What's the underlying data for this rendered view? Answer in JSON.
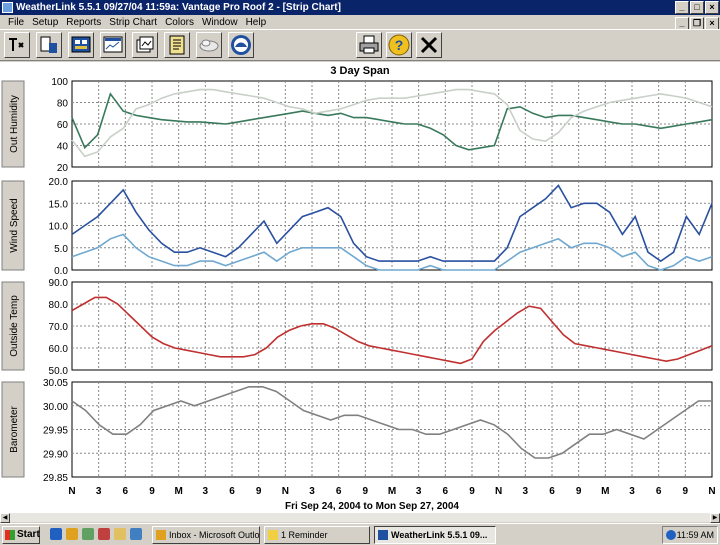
{
  "window": {
    "title": "WeatherLink 5.5.1  09/27/04  11:59a: Vantage Pro Roof 2 - [Strip Chart]"
  },
  "menu": [
    "File",
    "Setup",
    "Reports",
    "Strip Chart",
    "Colors",
    "Window",
    "Help"
  ],
  "toolbar": {
    "left_icons": [
      "station-icon",
      "summary-icon",
      "bulletin-icon",
      "strip-chart-icon",
      "graph-icon",
      "noaa-report-icon",
      "weather-cloud-icon",
      "noaa-logo-icon"
    ],
    "right_icons": [
      "print-icon",
      "help-icon",
      "close-icon"
    ]
  },
  "chart_data": {
    "type": "line",
    "title": "3 Day Span",
    "date_range": "Fri Sep 24, 2004  to  Mon Sep 27, 2004",
    "x_tick_labels": [
      "N",
      "3",
      "6",
      "9",
      "M",
      "3",
      "6",
      "9",
      "N",
      "3",
      "6",
      "9",
      "M",
      "3",
      "6",
      "9",
      "N",
      "3",
      "6",
      "9",
      "M",
      "3",
      "6",
      "9",
      "N"
    ],
    "panels": [
      {
        "ylabel": "Out Humidity",
        "ylim": [
          20,
          100
        ],
        "yticks": [
          "100",
          "80",
          "60",
          "40",
          "20"
        ],
        "series": [
          {
            "color": "#3a7a5c",
            "values": [
              66,
              38,
              50,
              88,
              72,
              68,
              66,
              64,
              63,
              62,
              62,
              61,
              60,
              62,
              64,
              66,
              68,
              70,
              72,
              70,
              68,
              70,
              66,
              66,
              64,
              62,
              60,
              60,
              56,
              50,
              40,
              36,
              38,
              40,
              74,
              76,
              70,
              66,
              68,
              68,
              66,
              64,
              62,
              60,
              60,
              58,
              56,
              58,
              60,
              62,
              64
            ]
          },
          {
            "color": "#c8d0c8",
            "values": [
              45,
              30,
              34,
              48,
              56,
              74,
              78,
              84,
              88,
              90,
              92,
              92,
              90,
              88,
              86,
              84,
              80,
              76,
              74,
              70,
              72,
              74,
              78,
              82,
              84,
              84,
              84,
              86,
              88,
              90,
              92,
              92,
              90,
              88,
              78,
              54,
              46,
              44,
              52,
              66,
              72,
              76,
              80,
              82,
              84,
              86,
              88,
              86,
              84,
              80,
              76
            ]
          }
        ]
      },
      {
        "ylabel": "Wind Speed",
        "ylim": [
          0,
          20
        ],
        "yticks": [
          "20.0",
          "15.0",
          "10.0",
          "5.0",
          "0.0"
        ],
        "series": [
          {
            "color": "#2a50a0",
            "values": [
              8,
              10,
              12,
              15,
              18,
              13,
              9,
              6,
              4,
              4,
              5,
              4,
              3,
              5,
              8,
              11,
              6,
              9,
              12,
              13,
              14,
              12,
              6,
              3,
              2,
              2,
              2,
              2,
              3,
              2,
              2,
              2,
              2,
              2,
              5,
              12,
              14,
              16,
              19,
              14,
              15,
              15,
              13,
              8,
              12,
              4,
              2,
              4,
              12,
              8,
              15
            ]
          },
          {
            "color": "#70a8d0",
            "values": [
              3,
              4,
              5,
              7,
              8,
              5,
              3,
              2,
              1,
              1,
              2,
              2,
              1,
              2,
              3,
              4,
              2,
              4,
              5,
              5,
              5,
              5,
              3,
              1,
              0,
              0,
              0,
              0,
              1,
              0,
              0,
              0,
              0,
              0,
              2,
              4,
              5,
              6,
              7,
              5,
              6,
              6,
              5,
              3,
              4,
              1,
              0,
              1,
              3,
              2,
              3
            ]
          }
        ]
      },
      {
        "ylabel": "Outside Temp",
        "ylim": [
          50,
          90
        ],
        "yticks": [
          "90.0",
          "80.0",
          "70.0",
          "60.0",
          "50.0"
        ],
        "series": [
          {
            "color": "#c03030",
            "values": [
              77,
              80,
              83,
              83,
              80,
              75,
              70,
              65,
              62,
              60,
              59,
              58,
              57,
              56,
              56,
              56,
              57,
              60,
              65,
              68,
              70,
              71,
              71,
              69,
              66,
              63,
              61,
              60,
              59,
              58,
              57,
              56,
              55,
              54,
              53,
              55,
              63,
              68,
              72,
              76,
              79,
              78,
              72,
              66,
              62,
              61,
              60,
              59,
              58,
              57,
              56,
              55,
              54,
              55,
              57,
              59,
              61
            ]
          }
        ]
      },
      {
        "ylabel": "Barometer",
        "ylim": [
          29.85,
          30.05
        ],
        "yticks": [
          "30.05",
          "30.00",
          "29.95",
          "29.90",
          "29.85"
        ],
        "series": [
          {
            "color": "#808080",
            "values": [
              30.01,
              29.99,
              29.96,
              29.94,
              29.94,
              29.96,
              29.99,
              30.0,
              30.01,
              30.0,
              30.01,
              30.02,
              30.03,
              30.04,
              30.04,
              30.03,
              30.01,
              29.99,
              29.98,
              29.97,
              29.98,
              29.98,
              29.97,
              29.96,
              29.95,
              29.95,
              29.94,
              29.94,
              29.95,
              29.96,
              29.97,
              29.96,
              29.94,
              29.91,
              29.89,
              29.89,
              29.9,
              29.92,
              29.94,
              29.94,
              29.95,
              29.94,
              29.93,
              29.95,
              29.97,
              29.99,
              30.01,
              30.01
            ]
          }
        ]
      }
    ]
  },
  "taskbar": {
    "start": "Start",
    "tasks": [
      {
        "label": "Inbox - Microsoft Outlook",
        "active": false
      },
      {
        "label": "1 Reminder",
        "active": false
      },
      {
        "label": "WeatherLink 5.5.1  09...",
        "active": true
      }
    ],
    "clock": "11:59 AM"
  }
}
